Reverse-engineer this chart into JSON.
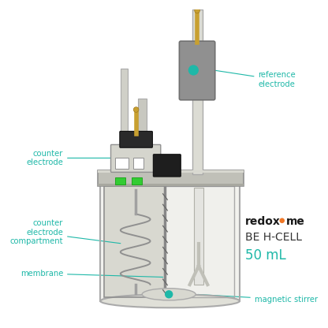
{
  "bg_color": "#ffffff",
  "teal": "#1eb8a8",
  "label_color": "#1eb8a8",
  "cell_gray": "#b8b8b0",
  "glass_edge": "#aaaaaa",
  "black": "#1a1a1a",
  "green_bright": "#44ee44",
  "gold": "#c8a030",
  "orange_dot": "#f07828",
  "labels": {
    "reference_electrode": "reference\nelectrode",
    "counter_electrode": "counter\nelectrode",
    "counter_compartment": "counter\nelectrode\ncompartment",
    "membrane": "membrane",
    "magnetic_stirrer": "magnetic stirrer",
    "brand": "redoxme",
    "product": "BE H-CELL",
    "volume": "50 mL"
  }
}
